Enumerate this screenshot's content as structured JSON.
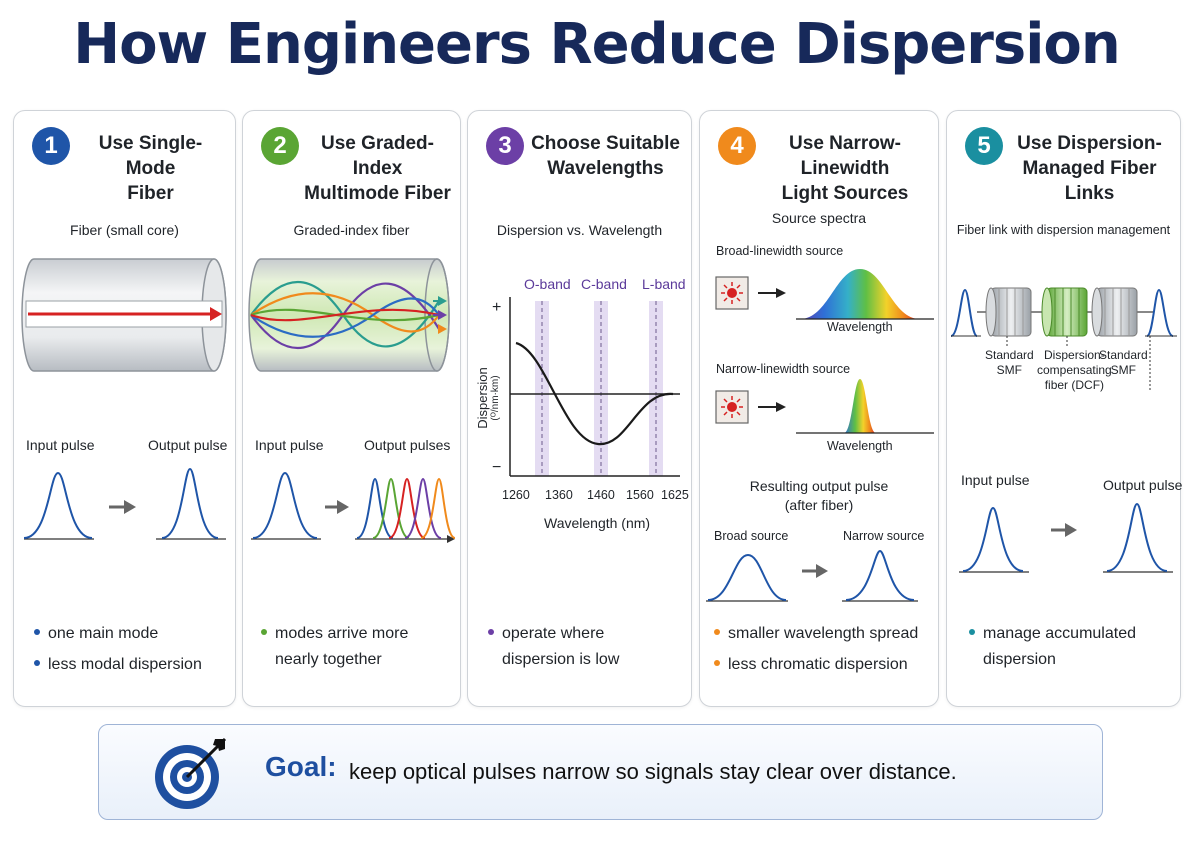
{
  "title": "How Engineers Reduce Dispersion",
  "colors": {
    "blue": "#1f55a8",
    "green": "#5aa534",
    "purple": "#6c3fa6",
    "orange": "#f08a1c",
    "teal": "#1a8fa0",
    "navy": "#17295a"
  },
  "cards": [
    {
      "num": "1",
      "title_line1": "Use Single-Mode",
      "title_line2": "Fiber",
      "diagram_label": "Fiber (small core)",
      "input_label": "Input pulse",
      "output_label": "Output pulse",
      "bullets": [
        "one main mode",
        "less modal dispersion"
      ]
    },
    {
      "num": "2",
      "title_line1": "Use Graded-Index",
      "title_line2": "Multimode Fiber",
      "diagram_label": "Graded-index fiber",
      "input_label": "Input pulse",
      "output_label": "Output pulses",
      "bullet_line1": "modes arrive more",
      "bullet_line2": "nearly together"
    },
    {
      "num": "3",
      "title_line1": "Choose Suitable",
      "title_line2": "Wavelengths",
      "bullet_line1": "operate where",
      "bullet_line2": "dispersion is low"
    },
    {
      "num": "4",
      "title_line1": "Use Narrow-Linewidth",
      "title_line2": "Light Sources",
      "spectra_label": "Source spectra",
      "broad_label": "Broad-linewidth source",
      "narrow_label": "Narrow-linewidth source",
      "wavelength_label": "Wavelength",
      "result_line1": "Resulting output pulse",
      "result_line2": "(after fiber)",
      "broad_source": "Broad source",
      "narrow_source": "Narrow source",
      "bullets": [
        "smaller wavelength spread",
        "less chromatic dispersion"
      ]
    },
    {
      "num": "5",
      "title_line1": "Use Dispersion-",
      "title_line2": "Managed Fiber Links",
      "diagram_label": "Fiber link with dispersion management",
      "smf1_line1": "Standard",
      "smf1_line2": "SMF",
      "dcf_line1": "Dispersion-",
      "dcf_line2": "compensating",
      "dcf_line3": "fiber (DCF)",
      "smf2_line1": "Standard",
      "smf2_line2": "SMF",
      "input_label": "Input pulse",
      "output_label": "Output pulse",
      "bullet_line1": "manage accumulated",
      "bullet_line2": "dispersion"
    }
  ],
  "chart_data": {
    "type": "line",
    "title": "Dispersion vs. Wavelength",
    "xlabel": "Wavelength (nm)",
    "ylabel": "Dispersion",
    "ylabel_unit": "(ᴼ/nm·km)",
    "y_plus": "+",
    "y_minus": "−",
    "x_ticks": [
      "1260",
      "1360",
      "1460",
      "1560",
      "1625"
    ],
    "bands": [
      "O-band",
      "C-band",
      "L-band"
    ],
    "band_colors": "#e4dcf2"
  },
  "goal": {
    "key": "Goal:",
    "text": "keep optical pulses narrow so signals stay clear over distance."
  }
}
